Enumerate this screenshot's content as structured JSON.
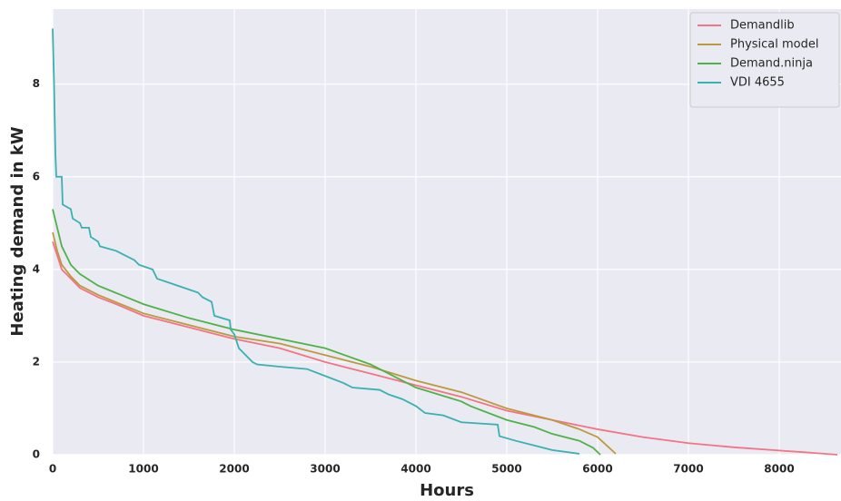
{
  "chart_data": {
    "type": "line",
    "xlabel": "Hours",
    "ylabel": "Heating demand in kW",
    "xlim": [
      0,
      8680
    ],
    "ylim": [
      0,
      9.62
    ],
    "xticks": [
      0,
      1000,
      2000,
      3000,
      4000,
      5000,
      6000,
      7000,
      8000
    ],
    "yticks": [
      0,
      2,
      4,
      6,
      8
    ],
    "grid": true,
    "legend": "upper right",
    "series": [
      {
        "name": "Demandlib",
        "color": "#f37484",
        "x": [
          0,
          50,
          100,
          200,
          300,
          500,
          700,
          1000,
          1500,
          2000,
          2500,
          3000,
          3500,
          4000,
          4500,
          5000,
          5500,
          6000,
          6500,
          7000,
          7500,
          8000,
          8300,
          8640
        ],
        "values": [
          4.6,
          4.3,
          4.0,
          3.8,
          3.6,
          3.4,
          3.25,
          3.0,
          2.75,
          2.5,
          2.3,
          2.0,
          1.75,
          1.5,
          1.25,
          0.95,
          0.75,
          0.55,
          0.38,
          0.25,
          0.16,
          0.09,
          0.05,
          0
        ]
      },
      {
        "name": "Physical model",
        "color": "#bb9a3f",
        "x": [
          0,
          50,
          100,
          200,
          300,
          500,
          1000,
          1500,
          2000,
          2500,
          3000,
          3500,
          4000,
          4500,
          5000,
          5500,
          5800,
          6000,
          6100,
          6200
        ],
        "values": [
          4.8,
          4.4,
          4.1,
          3.85,
          3.65,
          3.45,
          3.05,
          2.8,
          2.55,
          2.4,
          2.15,
          1.9,
          1.6,
          1.35,
          1.0,
          0.75,
          0.55,
          0.38,
          0.2,
          0.02
        ]
      },
      {
        "name": "Demand.ninja",
        "color": "#50b148",
        "x": [
          0,
          50,
          100,
          200,
          300,
          500,
          1000,
          1500,
          2000,
          2500,
          3000,
          3500,
          4000,
          4500,
          4600,
          5000,
          5300,
          5500,
          5800,
          5950,
          6030
        ],
        "values": [
          5.3,
          4.9,
          4.5,
          4.1,
          3.9,
          3.65,
          3.25,
          2.95,
          2.7,
          2.5,
          2.3,
          1.95,
          1.45,
          1.15,
          1.05,
          0.75,
          0.6,
          0.45,
          0.3,
          0.15,
          0.0
        ]
      },
      {
        "name": "VDI 4655",
        "color": "#3bb0b0",
        "x": [
          0,
          15,
          30,
          40,
          100,
          110,
          200,
          220,
          300,
          320,
          400,
          420,
          500,
          520,
          700,
          800,
          900,
          950,
          1100,
          1150,
          1300,
          1450,
          1600,
          1650,
          1750,
          1780,
          1950,
          1960,
          2000,
          2050,
          2200,
          2250,
          2500,
          2800,
          3000,
          3200,
          3300,
          3600,
          3700,
          3850,
          4000,
          4100,
          4300,
          4500,
          4900,
          4920,
          5100,
          5300,
          5500,
          5800
        ],
        "values": [
          9.2,
          8.0,
          6.5,
          6.0,
          6.0,
          5.4,
          5.3,
          5.1,
          5.0,
          4.9,
          4.9,
          4.7,
          4.6,
          4.5,
          4.4,
          4.3,
          4.2,
          4.1,
          4.0,
          3.8,
          3.7,
          3.6,
          3.5,
          3.4,
          3.3,
          3.0,
          2.9,
          2.7,
          2.6,
          2.3,
          2.0,
          1.95,
          1.9,
          1.85,
          1.7,
          1.55,
          1.45,
          1.4,
          1.3,
          1.2,
          1.05,
          0.9,
          0.85,
          0.7,
          0.65,
          0.4,
          0.3,
          0.2,
          0.1,
          0.02
        ]
      }
    ]
  }
}
